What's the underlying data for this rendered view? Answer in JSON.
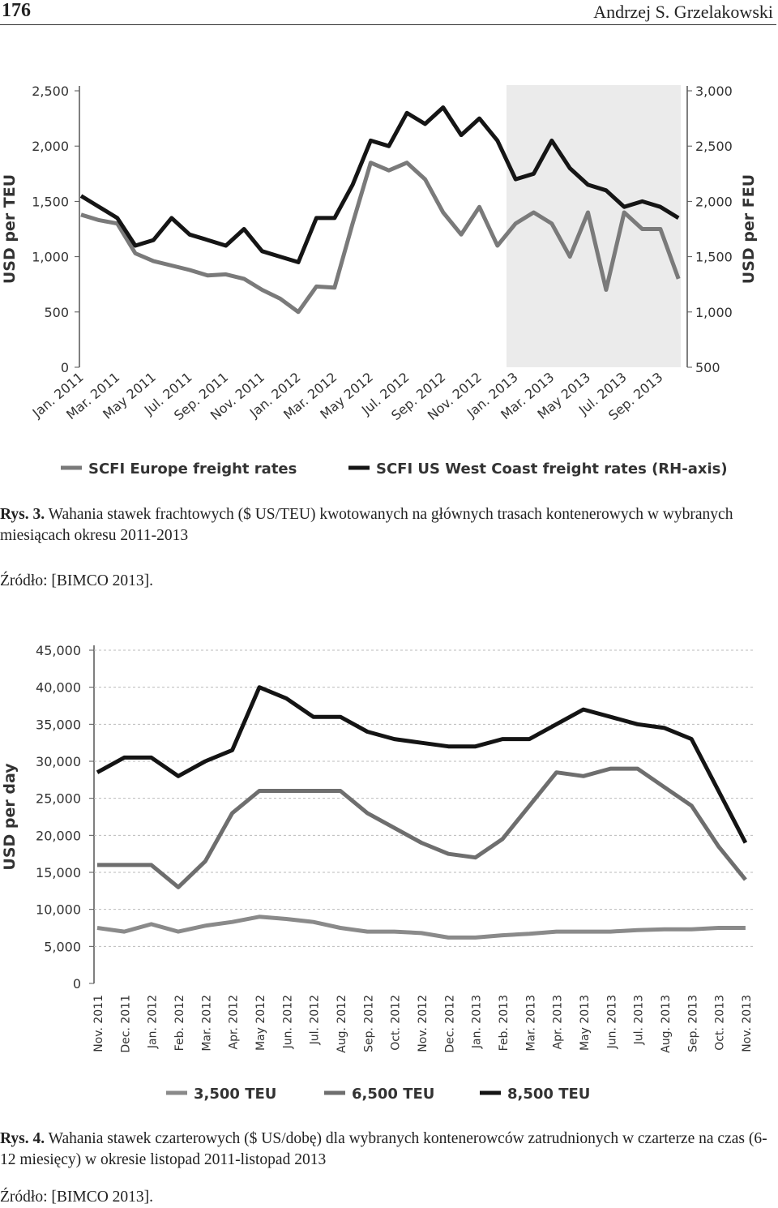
{
  "header": {
    "page_number": "176",
    "author": "Andrzej S. Grzelakowski"
  },
  "captions": [
    {
      "label": "Rys. 3.",
      "text": "Wahania stawek frachtowych ($ US/TEU) kwotowanych na głównych trasach kontenerowych w wybranych miesiącach okresu 2011-2013",
      "source": "Źródło: [BIMCO 2013]."
    },
    {
      "label": "Rys. 4.",
      "text": "Wahania stawek czarterowych ($ US/dobę) dla wybranych kontenerowców zatrudnionych w czarterze na czas (6-12 miesięcy) w okresie listopad 2011-listopad 2013",
      "source": "Źródło: [BIMCO 2013]."
    }
  ],
  "chart_data": [
    {
      "type": "line",
      "ylabel": "USD per TEU",
      "y2label": "USD per FEU",
      "categories": [
        "Jan. 2011",
        null,
        "Mar. 2011",
        null,
        "May 2011",
        null,
        "Jul. 2011",
        null,
        "Sep. 2011",
        null,
        "Nov. 2011",
        null,
        "Jan. 2012",
        null,
        "Mar. 2012",
        null,
        "May 2012",
        null,
        "Jul. 2012",
        null,
        "Sep. 2012",
        null,
        "Nov. 2012",
        null,
        "Jan. 2013",
        null,
        "Mar. 2013",
        null,
        "May 2013",
        null,
        "Jul. 2013",
        null,
        "Sep. 2013",
        null
      ],
      "ylim": [
        0,
        2500
      ],
      "yticks": [
        0,
        500,
        {
          "value": 1000,
          "label": "1,000"
        },
        {
          "value": 1500,
          "label": "1,500"
        },
        {
          "value": 2000,
          "label": "2,000"
        },
        {
          "value": 2500,
          "label": "2,500"
        }
      ],
      "y2lim": [
        500,
        3000
      ],
      "y2ticks": [
        500,
        {
          "value": 1000,
          "label": "1,000"
        },
        {
          "value": 1500,
          "label": "1,500"
        },
        {
          "value": 2000,
          "label": "2,000"
        },
        {
          "value": 2500,
          "label": "2,500"
        },
        {
          "value": 3000,
          "label": "3,000"
        }
      ],
      "series": [
        {
          "name": "SCFI Europe freight rates",
          "color": "#7a7a7a",
          "values": [
            1380,
            1330,
            1300,
            1030,
            960,
            920,
            880,
            830,
            840,
            800,
            700,
            620,
            500,
            730,
            720,
            1300,
            1850,
            1780,
            1850,
            1700,
            1400,
            1200,
            1450,
            1100,
            1300,
            1400,
            1300,
            1000,
            1400,
            700,
            1400,
            1250,
            1250,
            800
          ]
        },
        {
          "name": "SCFI US West Coast freight rates (RH-axis)",
          "color": "#151515",
          "axis": "y2",
          "values": [
            2050,
            1950,
            1850,
            1600,
            1650,
            1850,
            1700,
            1650,
            1600,
            1750,
            1550,
            1500,
            1450,
            1850,
            1850,
            2150,
            2550,
            2500,
            2800,
            2700,
            2850,
            2600,
            2750,
            2550,
            2200,
            2250,
            2550,
            2300,
            2150,
            2100,
            1950,
            2000,
            1950,
            1850
          ]
        }
      ]
    },
    {
      "type": "line",
      "ylabel": "USD per day",
      "grid": true,
      "categories": [
        "Nov. 2011",
        "Dec. 2011",
        "Jan. 2012",
        "Feb. 2012",
        "Mar. 2012",
        "Apr. 2012",
        "May 2012",
        "Jun. 2012",
        "Jul. 2012",
        "Aug. 2012",
        "Sep. 2012",
        "Oct. 2012",
        "Nov. 2012",
        "Dec. 2012",
        "Jan. 2013",
        "Feb. 2013",
        "Mar. 2013",
        "Apr. 2013",
        "May 2013",
        "Jun. 2013",
        "Jul. 2013",
        "Aug. 2013",
        "Sep. 2013",
        "Oct. 2013",
        "Nov. 2013"
      ],
      "ylim": [
        0,
        45000
      ],
      "yticks": [
        0,
        {
          "value": 5000,
          "label": "5,000"
        },
        {
          "value": 10000,
          "label": "10,000"
        },
        {
          "value": 15000,
          "label": "15,000"
        },
        {
          "value": 20000,
          "label": "20,000"
        },
        {
          "value": 25000,
          "label": "25,000"
        },
        {
          "value": 30000,
          "label": "30,000"
        },
        {
          "value": 35000,
          "label": "35,000"
        },
        {
          "value": 40000,
          "label": "40,000"
        },
        {
          "value": 45000,
          "label": "45,000"
        }
      ],
      "series": [
        {
          "name": "3,500 TEU",
          "color": "#8a8a8a",
          "values": [
            7500,
            7000,
            8000,
            7000,
            7800,
            8300,
            9000,
            8700,
            8300,
            7500,
            7000,
            7000,
            6800,
            6200,
            6200,
            6500,
            6700,
            7000,
            7000,
            7000,
            7200,
            7300,
            7300,
            7500,
            7500
          ]
        },
        {
          "name": "6,500 TEU",
          "color": "#6e6e6e",
          "values": [
            16000,
            16000,
            16000,
            13000,
            16500,
            23000,
            26000,
            26000,
            26000,
            26000,
            23000,
            21000,
            19000,
            17500,
            17000,
            19500,
            24000,
            28500,
            28000,
            29000,
            29000,
            26500,
            24000,
            18500,
            14000
          ]
        },
        {
          "name": "8,500 TEU",
          "color": "#141414",
          "values": [
            28500,
            30500,
            30500,
            28000,
            30000,
            31500,
            40000,
            38500,
            36000,
            36000,
            34000,
            33000,
            32500,
            32000,
            32000,
            33000,
            33000,
            35000,
            37000,
            36000,
            35000,
            34500,
            33000,
            26000,
            19000
          ]
        }
      ]
    }
  ]
}
